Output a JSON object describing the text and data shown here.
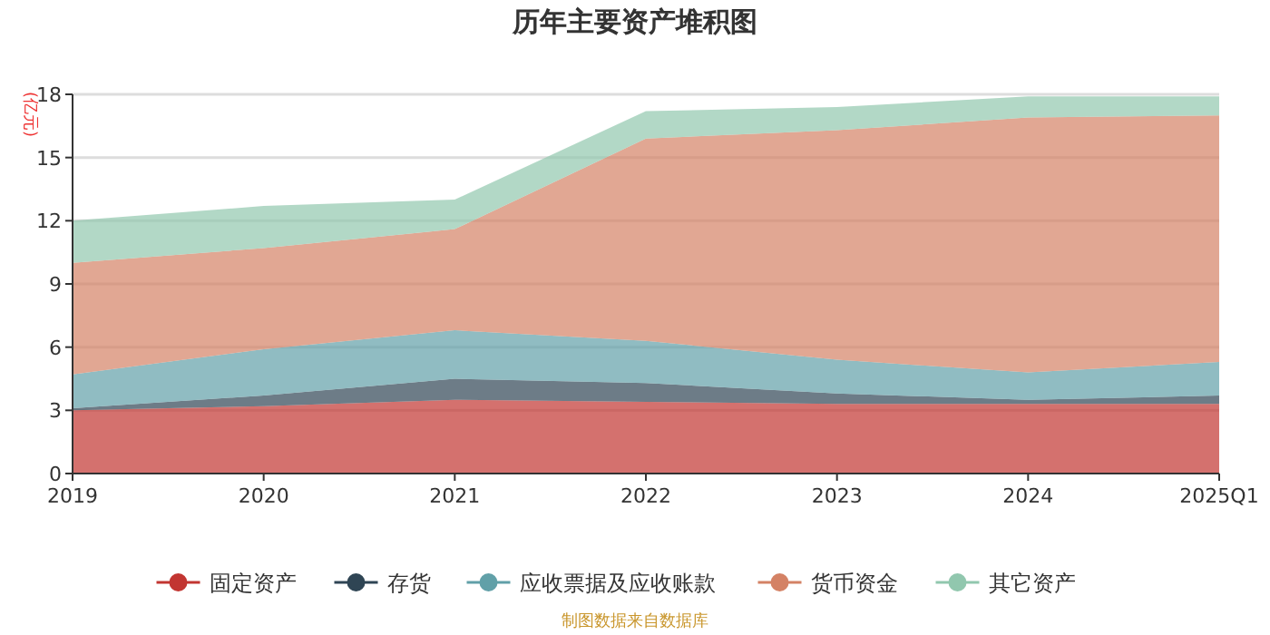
{
  "chart_data": {
    "type": "area",
    "title": "历年主要资产堆积图",
    "ylabel": "(亿元)",
    "stacked": true,
    "categories": [
      "2019",
      "2020",
      "2021",
      "2022",
      "2023",
      "2024",
      "2025Q1"
    ],
    "series": [
      {
        "name": "固定资产",
        "color": "#c23531",
        "values": [
          3.0,
          3.2,
          3.5,
          3.4,
          3.3,
          3.3,
          3.3
        ]
      },
      {
        "name": "存货",
        "color": "#2f4554",
        "values": [
          0.1,
          0.5,
          1.0,
          0.9,
          0.5,
          0.2,
          0.4
        ]
      },
      {
        "name": "应收票据及应收账款",
        "color": "#61a0a8",
        "values": [
          1.6,
          2.2,
          2.3,
          2.0,
          1.6,
          1.3,
          1.6
        ]
      },
      {
        "name": "货币资金",
        "color": "#d48265",
        "values": [
          5.3,
          4.8,
          4.8,
          9.6,
          10.9,
          12.1,
          11.7
        ]
      },
      {
        "name": "其它资产",
        "color": "#91c7ae",
        "values": [
          2.0,
          2.0,
          1.4,
          1.3,
          1.1,
          1.0,
          0.9
        ]
      }
    ],
    "ylim": [
      0,
      18
    ],
    "yticks": [
      0,
      3,
      6,
      9,
      12,
      15,
      18
    ],
    "grid": "y",
    "legend": "bottom",
    "annotations": [
      "制图数据来自数据库"
    ]
  }
}
